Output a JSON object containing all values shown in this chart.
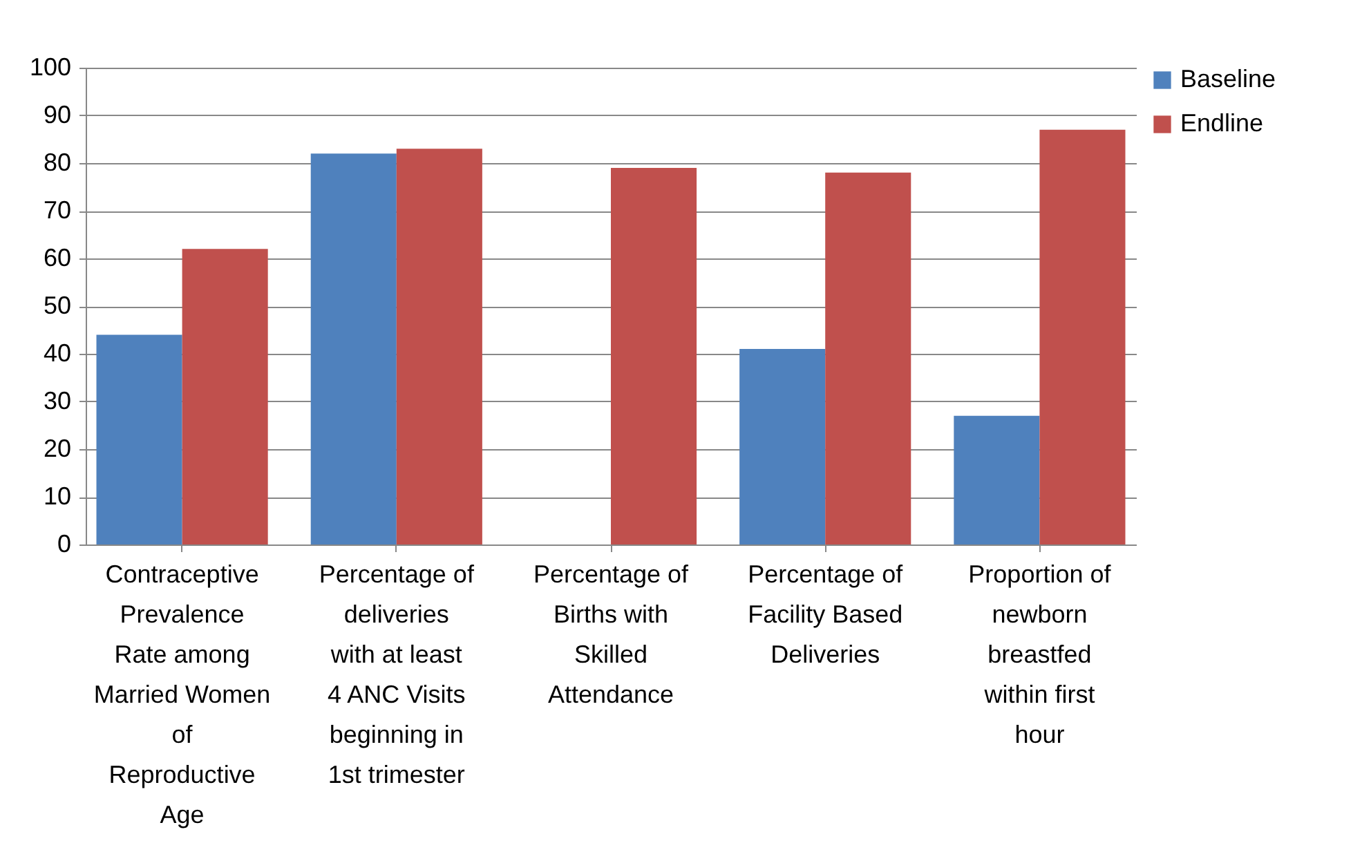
{
  "chart_data": {
    "type": "bar",
    "categories": [
      "Contraceptive Prevalence Rate among Married Women of Reproductive Age",
      "Percentage of deliveries with at least 4 ANC Visits beginning in 1st trimester",
      "Percentage of Births with Skilled Attendance",
      "Percentage of Facility Based Deliveries",
      "Proportion of newborn breastfed within first hour"
    ],
    "series": [
      {
        "name": "Baseline",
        "color": "#4f81bd",
        "values": [
          44,
          82,
          null,
          41,
          27
        ]
      },
      {
        "name": "Endline",
        "color": "#c0504d",
        "values": [
          62,
          83,
          79,
          78,
          87
        ]
      }
    ],
    "ylim": [
      0,
      100
    ],
    "yticks": [
      0,
      10,
      20,
      30,
      40,
      50,
      60,
      70,
      80,
      90,
      100
    ],
    "grid": "y",
    "legend": "right"
  }
}
